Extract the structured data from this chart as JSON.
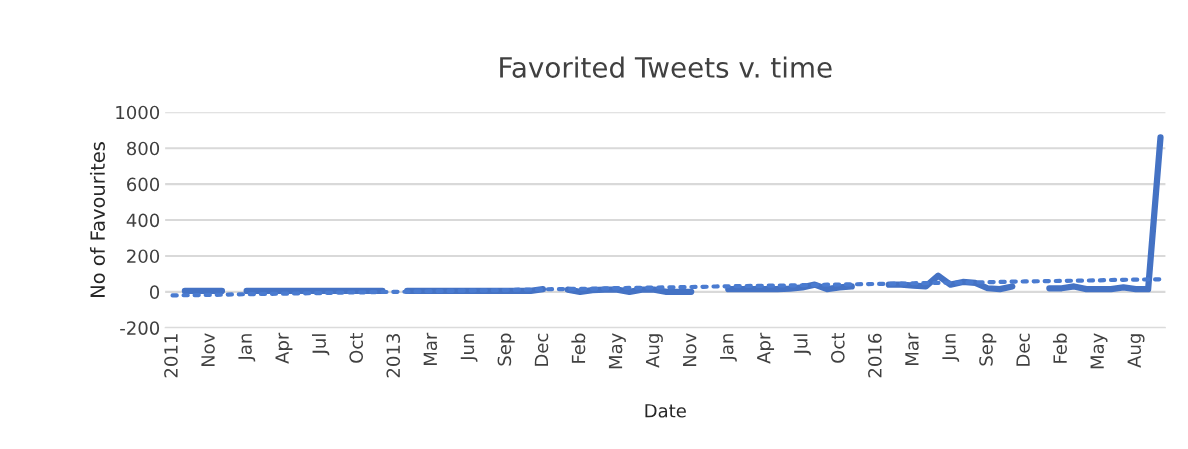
{
  "chart_data": {
    "type": "line",
    "title": "Favorited Tweets v. time",
    "xlabel": "Date",
    "ylabel": "No of Favourites",
    "categories": [
      "2011",
      null,
      null,
      "Nov",
      null,
      null,
      "Jan",
      null,
      null,
      "Apr",
      null,
      null,
      "Jul",
      null,
      null,
      "Oct",
      null,
      null,
      "2013",
      null,
      null,
      "Mar",
      null,
      null,
      "Jun",
      null,
      null,
      "Sep",
      null,
      null,
      "Dec",
      null,
      null,
      "Feb",
      null,
      null,
      "May",
      null,
      null,
      "Aug",
      null,
      null,
      "Nov",
      null,
      null,
      "Jan",
      null,
      null,
      "Apr",
      null,
      null,
      "Jul",
      null,
      null,
      "Oct",
      null,
      null,
      "2016",
      null,
      null,
      "Mar",
      null,
      null,
      "Jun",
      null,
      null,
      "Sep",
      null,
      null,
      "Dec",
      null,
      null,
      "Feb",
      null,
      null,
      "May",
      null,
      null,
      "Aug",
      null,
      null
    ],
    "ylim": [
      -200,
      1000
    ],
    "yticks": [
      -200,
      0,
      200,
      400,
      600,
      800,
      1000
    ],
    "grid": "y",
    "series": [
      {
        "color": "#4472c4",
        "line_style": "solid",
        "values": [
          null,
          5,
          5,
          5,
          5,
          null,
          5,
          5,
          5,
          5,
          5,
          5,
          5,
          5,
          5,
          5,
          5,
          5,
          null,
          5,
          5,
          5,
          5,
          5,
          5,
          5,
          5,
          5,
          5,
          5,
          15,
          null,
          12,
          0,
          10,
          12,
          12,
          0,
          12,
          12,
          0,
          0,
          0,
          null,
          null,
          15,
          15,
          15,
          15,
          15,
          18,
          25,
          40,
          15,
          25,
          30,
          null,
          null,
          40,
          40,
          35,
          30,
          90,
          40,
          55,
          50,
          20,
          15,
          30,
          null,
          null,
          20,
          20,
          30,
          15,
          15,
          15,
          25,
          15,
          15,
          860
        ]
      },
      {
        "color": "#4a7bd0",
        "line_style": "dotted",
        "values": [
          -20,
          -19,
          -18,
          -17,
          -16,
          -14,
          -13,
          -12,
          -11,
          -10,
          -9,
          -8,
          -7,
          -5,
          -4,
          -3,
          -2,
          -1,
          0,
          1,
          3,
          4,
          5,
          6,
          7,
          8,
          9,
          10,
          12,
          13,
          14,
          15,
          16,
          17,
          18,
          19,
          21,
          22,
          23,
          24,
          25,
          26,
          27,
          28,
          30,
          31,
          32,
          33,
          34,
          35,
          36,
          37,
          39,
          40,
          41,
          42,
          43,
          44,
          45,
          46,
          48,
          49,
          50,
          51,
          52,
          53,
          54,
          55,
          57,
          58,
          59,
          60,
          61,
          62,
          63,
          64,
          66,
          67,
          68,
          69,
          70
        ]
      }
    ]
  }
}
